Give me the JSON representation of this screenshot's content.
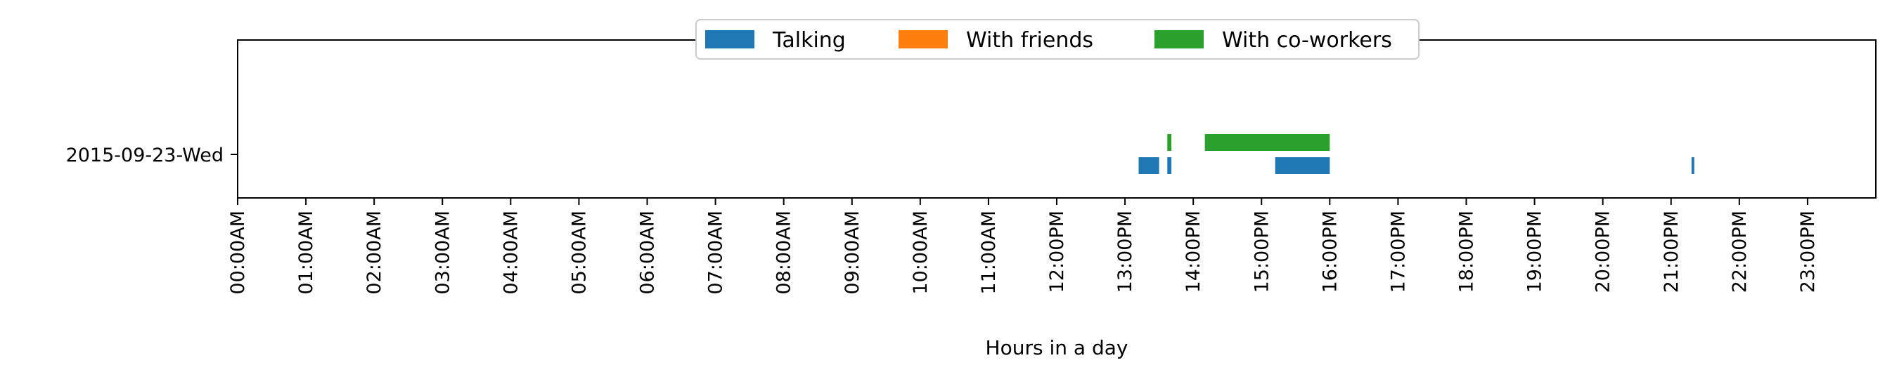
{
  "chart_data": {
    "type": "broken-bar-timeline",
    "xlabel": "Hours in a day",
    "ylabel": "",
    "xlim": [
      0,
      24
    ],
    "x_ticks": [
      "00:00AM",
      "01:00AM",
      "02:00AM",
      "03:00AM",
      "04:00AM",
      "05:00AM",
      "06:00AM",
      "07:00AM",
      "08:00AM",
      "09:00AM",
      "10:00AM",
      "11:00AM",
      "12:00PM",
      "13:00PM",
      "14:00PM",
      "15:00PM",
      "16:00PM",
      "17:00PM",
      "18:00PM",
      "19:00PM",
      "20:00PM",
      "21:00PM",
      "22:00PM",
      "23:00PM"
    ],
    "rows": [
      "2015-09-23-Wed"
    ],
    "legend_position": "top-center",
    "series": [
      {
        "name": "Talking",
        "color": "#1f77b4",
        "intervals": [
          {
            "row": "2015-09-23-Wed",
            "start": 13.2,
            "end": 13.5
          },
          {
            "row": "2015-09-23-Wed",
            "start": 13.62,
            "end": 13.68
          },
          {
            "row": "2015-09-23-Wed",
            "start": 15.2,
            "end": 16.0
          },
          {
            "row": "2015-09-23-Wed",
            "start": 21.3,
            "end": 21.34
          }
        ]
      },
      {
        "name": "With friends",
        "color": "#ff7f0e",
        "intervals": []
      },
      {
        "name": "With co-workers",
        "color": "#2ca02c",
        "intervals": [
          {
            "row": "2015-09-23-Wed",
            "start": 13.62,
            "end": 13.68
          },
          {
            "row": "2015-09-23-Wed",
            "start": 14.17,
            "end": 16.0
          }
        ]
      }
    ]
  }
}
